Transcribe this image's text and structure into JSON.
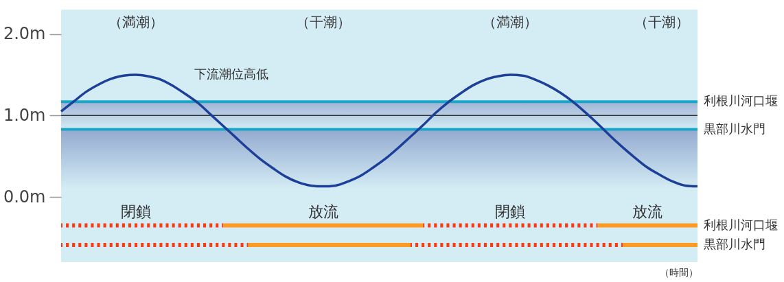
{
  "chart_data": {
    "type": "line",
    "xlabel": "（時間）",
    "annotations": [
      "（満潮）",
      "（干潮）",
      "（満潮）",
      "（干潮）"
    ],
    "categories": [
      null,
      null,
      null,
      null,
      null,
      null,
      null,
      null,
      null,
      null,
      null,
      null,
      null,
      null,
      null,
      null,
      null,
      null,
      null,
      null,
      null,
      null,
      null,
      null,
      null,
      null,
      null,
      null,
      null,
      null,
      null,
      null,
      null,
      null,
      null,
      null,
      null,
      null,
      null,
      null,
      null,
      null,
      null,
      null,
      null,
      null,
      null,
      null,
      null,
      null,
      null,
      null
    ],
    "ylim": [
      -0.8,
      2.3
    ],
    "yticks": [
      {
        "value": 0,
        "label": "0.0m"
      },
      {
        "value": 1,
        "label": "1.0m"
      },
      {
        "value": 2,
        "label": "2.0m"
      }
    ],
    "tick_labels": "y",
    "series": [
      {
        "name": "下流潮位高低",
        "color": "#1c3f98",
        "values": [
          1.05,
          1.17,
          1.29,
          1.38,
          1.45,
          1.49,
          1.5,
          1.48,
          1.44,
          1.36,
          1.26,
          1.15,
          1.01,
          0.87,
          0.73,
          0.59,
          0.46,
          0.35,
          0.25,
          0.18,
          0.14,
          0.13,
          0.14,
          0.19,
          0.26,
          0.36,
          0.47,
          0.6,
          0.74,
          0.88,
          1.03,
          1.16,
          1.27,
          1.37,
          1.44,
          1.48,
          1.5,
          1.49,
          1.44,
          1.37,
          1.28,
          1.17,
          1.04,
          0.9,
          0.75,
          0.61,
          0.48,
          0.36,
          0.27,
          0.19,
          0.14,
          0.13
        ]
      },
      {
        "color": "#ff3a12",
        "line_style": "dotted",
        "values": [
          -0.35,
          -0.35,
          -0.35,
          -0.35,
          -0.35,
          -0.35,
          -0.35,
          -0.35,
          -0.35,
          -0.35,
          -0.35,
          -0.35,
          -0.35,
          -0.35,
          null,
          null,
          null,
          null,
          null,
          null,
          null,
          null,
          null,
          null,
          null,
          null,
          null,
          null,
          null,
          -0.35,
          -0.35,
          -0.35,
          -0.35,
          -0.35,
          -0.35,
          -0.35,
          -0.35,
          -0.35,
          -0.35,
          -0.35,
          -0.35,
          -0.35,
          -0.35,
          -0.35,
          null,
          null,
          null,
          null,
          null,
          null,
          null,
          null
        ],
        "value_labels": [
          null,
          null,
          null,
          null,
          null,
          null,
          "閉鎖",
          null,
          null,
          null,
          null,
          null,
          null,
          null,
          null,
          null,
          null,
          null,
          null,
          null,
          null,
          null,
          null,
          null,
          null,
          null,
          null,
          null,
          null,
          null,
          null,
          null,
          null,
          null,
          null,
          null,
          "閉鎖",
          null,
          null,
          null,
          null,
          null,
          null,
          null,
          null,
          null,
          null,
          null,
          null,
          null,
          null,
          null
        ]
      },
      {
        "name": "利根川河口堰",
        "color": "#ff9a22",
        "values": [
          null,
          null,
          null,
          null,
          null,
          null,
          null,
          null,
          null,
          null,
          null,
          null,
          null,
          -0.35,
          -0.35,
          -0.35,
          -0.35,
          -0.35,
          -0.35,
          -0.35,
          -0.35,
          -0.35,
          -0.35,
          -0.35,
          -0.35,
          -0.35,
          -0.35,
          -0.35,
          -0.35,
          -0.35,
          null,
          null,
          null,
          null,
          null,
          null,
          null,
          null,
          null,
          null,
          null,
          null,
          null,
          -0.35,
          -0.35,
          -0.35,
          -0.35,
          -0.35,
          -0.35,
          -0.35,
          -0.35,
          -0.35
        ],
        "value_labels": [
          null,
          null,
          null,
          null,
          null,
          null,
          null,
          null,
          null,
          null,
          null,
          null,
          null,
          null,
          null,
          null,
          null,
          null,
          null,
          null,
          null,
          "放流",
          null,
          null,
          null,
          null,
          null,
          null,
          null,
          null,
          null,
          null,
          null,
          null,
          null,
          null,
          null,
          null,
          null,
          null,
          null,
          null,
          null,
          null,
          null,
          null,
          null,
          "放流",
          null,
          null,
          null,
          null
        ]
      },
      {
        "color": "#ff3a12",
        "line_style": "dotted",
        "values": [
          -0.59,
          -0.59,
          -0.59,
          -0.59,
          -0.59,
          -0.59,
          -0.59,
          -0.59,
          -0.59,
          -0.59,
          -0.59,
          -0.59,
          -0.59,
          -0.59,
          -0.59,
          -0.59,
          null,
          null,
          null,
          null,
          null,
          null,
          null,
          null,
          null,
          null,
          null,
          null,
          -0.59,
          -0.59,
          -0.59,
          -0.59,
          -0.59,
          -0.59,
          -0.59,
          -0.59,
          -0.59,
          -0.59,
          -0.59,
          -0.59,
          -0.59,
          -0.59,
          -0.59,
          -0.59,
          -0.59,
          -0.59,
          null,
          null,
          null,
          null,
          null,
          null
        ]
      },
      {
        "name": "黒部川水門",
        "color": "#ff9a22",
        "values": [
          null,
          null,
          null,
          null,
          null,
          null,
          null,
          null,
          null,
          null,
          null,
          null,
          null,
          null,
          null,
          -0.59,
          -0.59,
          -0.59,
          -0.59,
          -0.59,
          -0.59,
          -0.59,
          -0.59,
          -0.59,
          -0.59,
          -0.59,
          -0.59,
          -0.59,
          -0.59,
          null,
          null,
          null,
          null,
          null,
          null,
          null,
          null,
          null,
          null,
          null,
          null,
          null,
          null,
          null,
          null,
          -0.59,
          -0.59,
          -0.59,
          -0.59,
          -0.59,
          -0.59,
          -0.59
        ]
      }
    ],
    "ref_lines": [
      {
        "axis": "y",
        "value": 1.17,
        "label": "利根川河口堰",
        "color": "#1aa6c8"
      },
      {
        "axis": "y",
        "value": 1.0,
        "color": "#333333"
      },
      {
        "axis": "y",
        "value": 0.83,
        "label": "黒部川水門",
        "color": "#1aa6c8"
      }
    ],
    "bands": [
      {
        "axis": "y",
        "from": 0.83,
        "to": 1.17,
        "color": "#9fb3d5"
      },
      {
        "axis": "y",
        "from": 0.1,
        "to": 0.83,
        "color": "#93aad0"
      }
    ]
  }
}
